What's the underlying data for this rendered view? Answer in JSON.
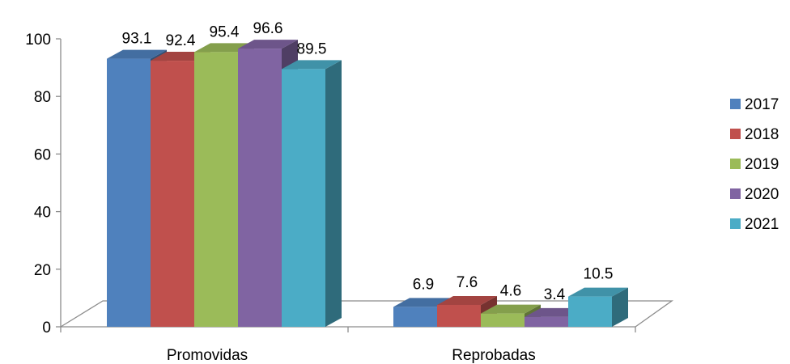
{
  "chart_data": {
    "type": "bar",
    "categories": [
      "Promovidas",
      "Reprobadas"
    ],
    "series": [
      {
        "name": "2017",
        "color": "#4f81bd",
        "values": [
          93.1,
          6.9
        ]
      },
      {
        "name": "2018",
        "color": "#c0504d",
        "values": [
          92.4,
          7.6
        ]
      },
      {
        "name": "2019",
        "color": "#9bbb59",
        "values": [
          95.4,
          4.6
        ]
      },
      {
        "name": "2020",
        "color": "#8064a2",
        "values": [
          96.6,
          3.4
        ]
      },
      {
        "name": "2021",
        "color": "#4bacc6",
        "values": [
          89.5,
          10.5
        ]
      }
    ],
    "y_ticks": [
      "0",
      "20",
      "40",
      "60",
      "80",
      "100"
    ],
    "ylim": [
      0,
      100
    ],
    "grid": false,
    "legend_position": "right",
    "style": "3d-clustered-column"
  }
}
